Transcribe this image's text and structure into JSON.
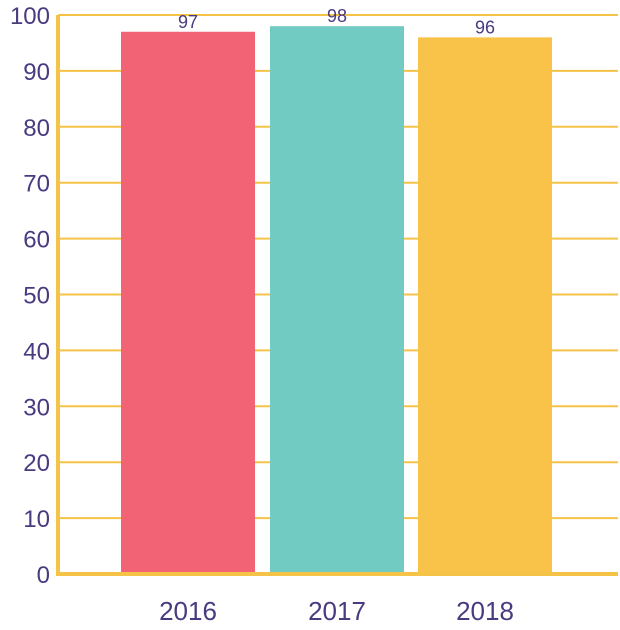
{
  "chart_data": {
    "type": "bar",
    "title": "",
    "xlabel": "",
    "ylabel": "",
    "categories": [
      "2016",
      "2017",
      "2018"
    ],
    "values": [
      97,
      98,
      96
    ],
    "data_labels": [
      "97",
      "98",
      "96"
    ],
    "ylim": [
      0,
      100
    ],
    "yticks": [
      0,
      10,
      20,
      30,
      40,
      50,
      60,
      70,
      80,
      90,
      100
    ],
    "grid": true,
    "legend": "none",
    "colors": {
      "bars": [
        "#f26375",
        "#72cbc2",
        "#f9c34a"
      ],
      "axis": "#f5c347",
      "grid": "#f5c347",
      "text": "#4a3a80"
    }
  }
}
